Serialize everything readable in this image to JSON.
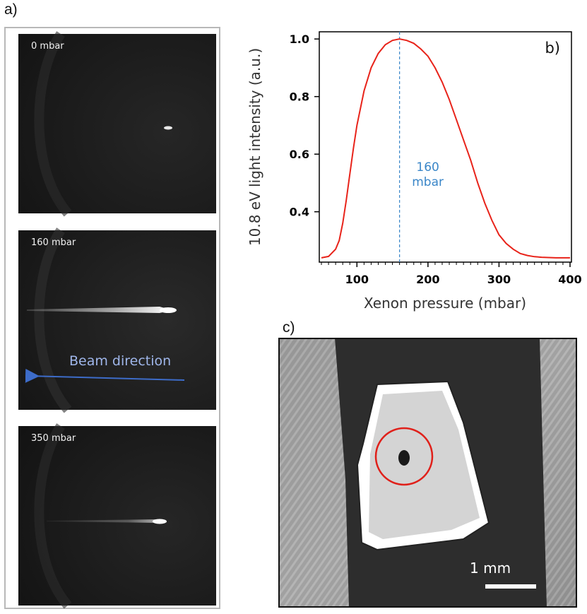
{
  "panel_labels": {
    "a": "a)",
    "b": "b)",
    "c": "c)"
  },
  "panel_a": {
    "images": [
      {
        "pressure_label": "0 mbar"
      },
      {
        "pressure_label": "160 mbar"
      },
      {
        "pressure_label": "350 mbar"
      }
    ],
    "beam_label": "Beam direction",
    "colors": {
      "arrow": "#3d6cc9",
      "label": "#9fb6ea"
    }
  },
  "panel_c": {
    "scale_bar_label": "1 mm",
    "colors": {
      "circle": "#e0201a"
    }
  },
  "chart_data": {
    "type": "line",
    "title": "",
    "xlabel": "Xenon pressure (mbar)",
    "ylabel": "10.8 eV light intensity (a.u.)",
    "xlim": [
      47,
      402
    ],
    "ylim": [
      0.225,
      1.025
    ],
    "xticks": [
      100,
      200,
      300,
      400
    ],
    "yticks": [
      0.4,
      0.6,
      0.8,
      1.0
    ],
    "ytick_labels": [
      "0.4",
      "0.6",
      "0.8",
      "1.0"
    ],
    "grid": false,
    "series": [
      {
        "color": "#e8231a",
        "x": [
          50,
          60,
          70,
          75,
          80,
          85,
          90,
          95,
          100,
          110,
          120,
          130,
          140,
          150,
          160,
          170,
          180,
          190,
          200,
          210,
          220,
          230,
          240,
          250,
          260,
          270,
          280,
          290,
          300,
          310,
          320,
          330,
          340,
          350,
          360,
          370,
          380,
          390,
          400
        ],
        "y": [
          0.24,
          0.245,
          0.27,
          0.3,
          0.36,
          0.44,
          0.53,
          0.62,
          0.7,
          0.82,
          0.9,
          0.95,
          0.98,
          0.995,
          1.0,
          0.995,
          0.985,
          0.965,
          0.94,
          0.9,
          0.85,
          0.79,
          0.72,
          0.65,
          0.58,
          0.5,
          0.43,
          0.37,
          0.32,
          0.29,
          0.27,
          0.255,
          0.248,
          0.244,
          0.242,
          0.241,
          0.24,
          0.24,
          0.24
        ]
      }
    ],
    "vline": {
      "x": 160,
      "label_line1": "160",
      "label_line2": "mbar",
      "color": "#3a86c8"
    }
  }
}
